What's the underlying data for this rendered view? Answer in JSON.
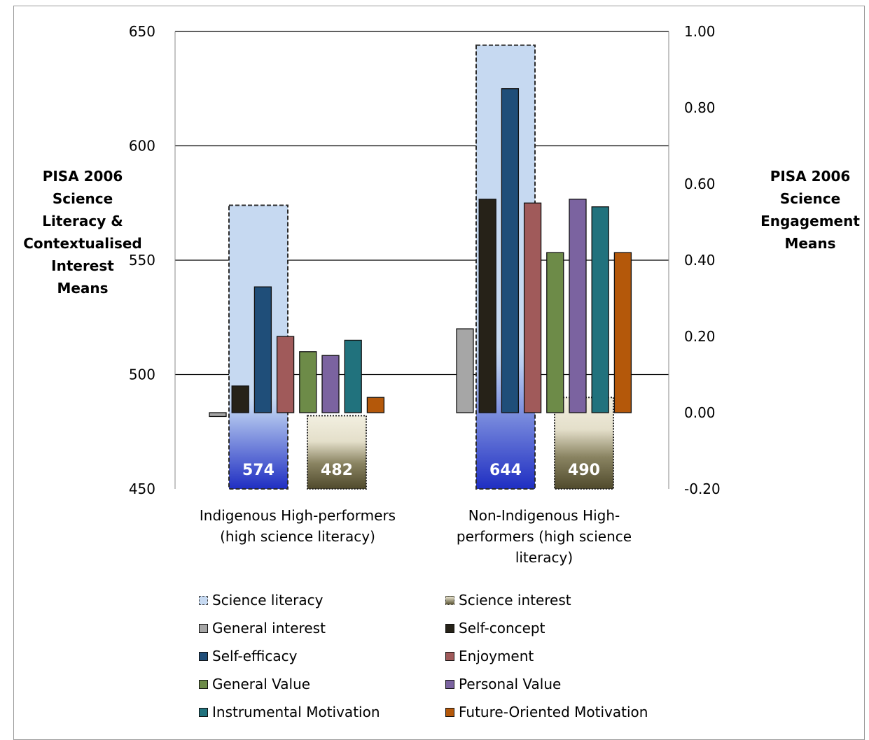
{
  "chart_data": {
    "type": "bar",
    "categories": [
      "Indigenous High-performers (high science literacy)",
      "Non-Indigenous High-performers (high science literacy)"
    ],
    "category_lines": [
      [
        "Indigenous High-performers",
        "(high science literacy)"
      ],
      [
        "Non-Indigenous High-",
        "performers (high science",
        "literacy)"
      ]
    ],
    "ylabel_left": "PISA 2006 Science Literacy & Contextualised Interest Means",
    "ylabel_left_lines": [
      "PISA 2006",
      "Science",
      "Literacy &",
      "Contextualised",
      "Interest",
      "Means"
    ],
    "ylabel_right": "PISA 2006 Science Engagement Means",
    "ylabel_right_lines": [
      "PISA 2006",
      "Science",
      "Engagement",
      "Means"
    ],
    "ylim_left": [
      450,
      650
    ],
    "ylim_right": [
      -0.2,
      1.0
    ],
    "yticks_left": [
      "650",
      "600",
      "550",
      "500",
      "450"
    ],
    "yticks_right": [
      "1.00",
      "0.80",
      "0.60",
      "0.40",
      "0.20",
      "0.00",
      "-0.20"
    ],
    "grid": true,
    "legend_position": "bottom",
    "series_left_axis": [
      {
        "name": "Science literacy",
        "values": [
          574,
          644
        ],
        "value_labels": [
          "574",
          "644"
        ],
        "color": "#c6d9f1",
        "border": "dashed"
      },
      {
        "name": "Science interest",
        "values": [
          482,
          490
        ],
        "value_labels": [
          "482",
          "490"
        ],
        "color": "#5a5434",
        "border": "dotted"
      }
    ],
    "series_right_axis": [
      {
        "name": "General interest",
        "values": [
          -0.01,
          0.22
        ],
        "color": "#a6a6a6"
      },
      {
        "name": "Self-concept",
        "values": [
          0.07,
          0.56
        ],
        "color": "#262218"
      },
      {
        "name": "Self-efficacy",
        "values": [
          0.33,
          0.85
        ],
        "color": "#1f4e79"
      },
      {
        "name": "Enjoyment",
        "values": [
          0.2,
          0.55
        ],
        "color": "#a05a5a"
      },
      {
        "name": "General Value",
        "values": [
          0.16,
          0.42
        ],
        "color": "#6d8b48"
      },
      {
        "name": "Personal Value",
        "values": [
          0.15,
          0.56
        ],
        "color": "#7b63a0"
      },
      {
        "name": "Instrumental Motivation",
        "values": [
          0.19,
          0.54
        ],
        "color": "#21727d"
      },
      {
        "name": "Future-Oriented Motivation",
        "values": [
          0.04,
          0.42
        ],
        "color": "#b4580a"
      }
    ],
    "legend": [
      "Science literacy",
      "Science interest",
      "General interest",
      "Self-concept",
      "Self-efficacy",
      "Enjoyment",
      "General Value",
      "Personal Value",
      "Instrumental Motivation",
      "Future-Oriented Motivation"
    ]
  }
}
